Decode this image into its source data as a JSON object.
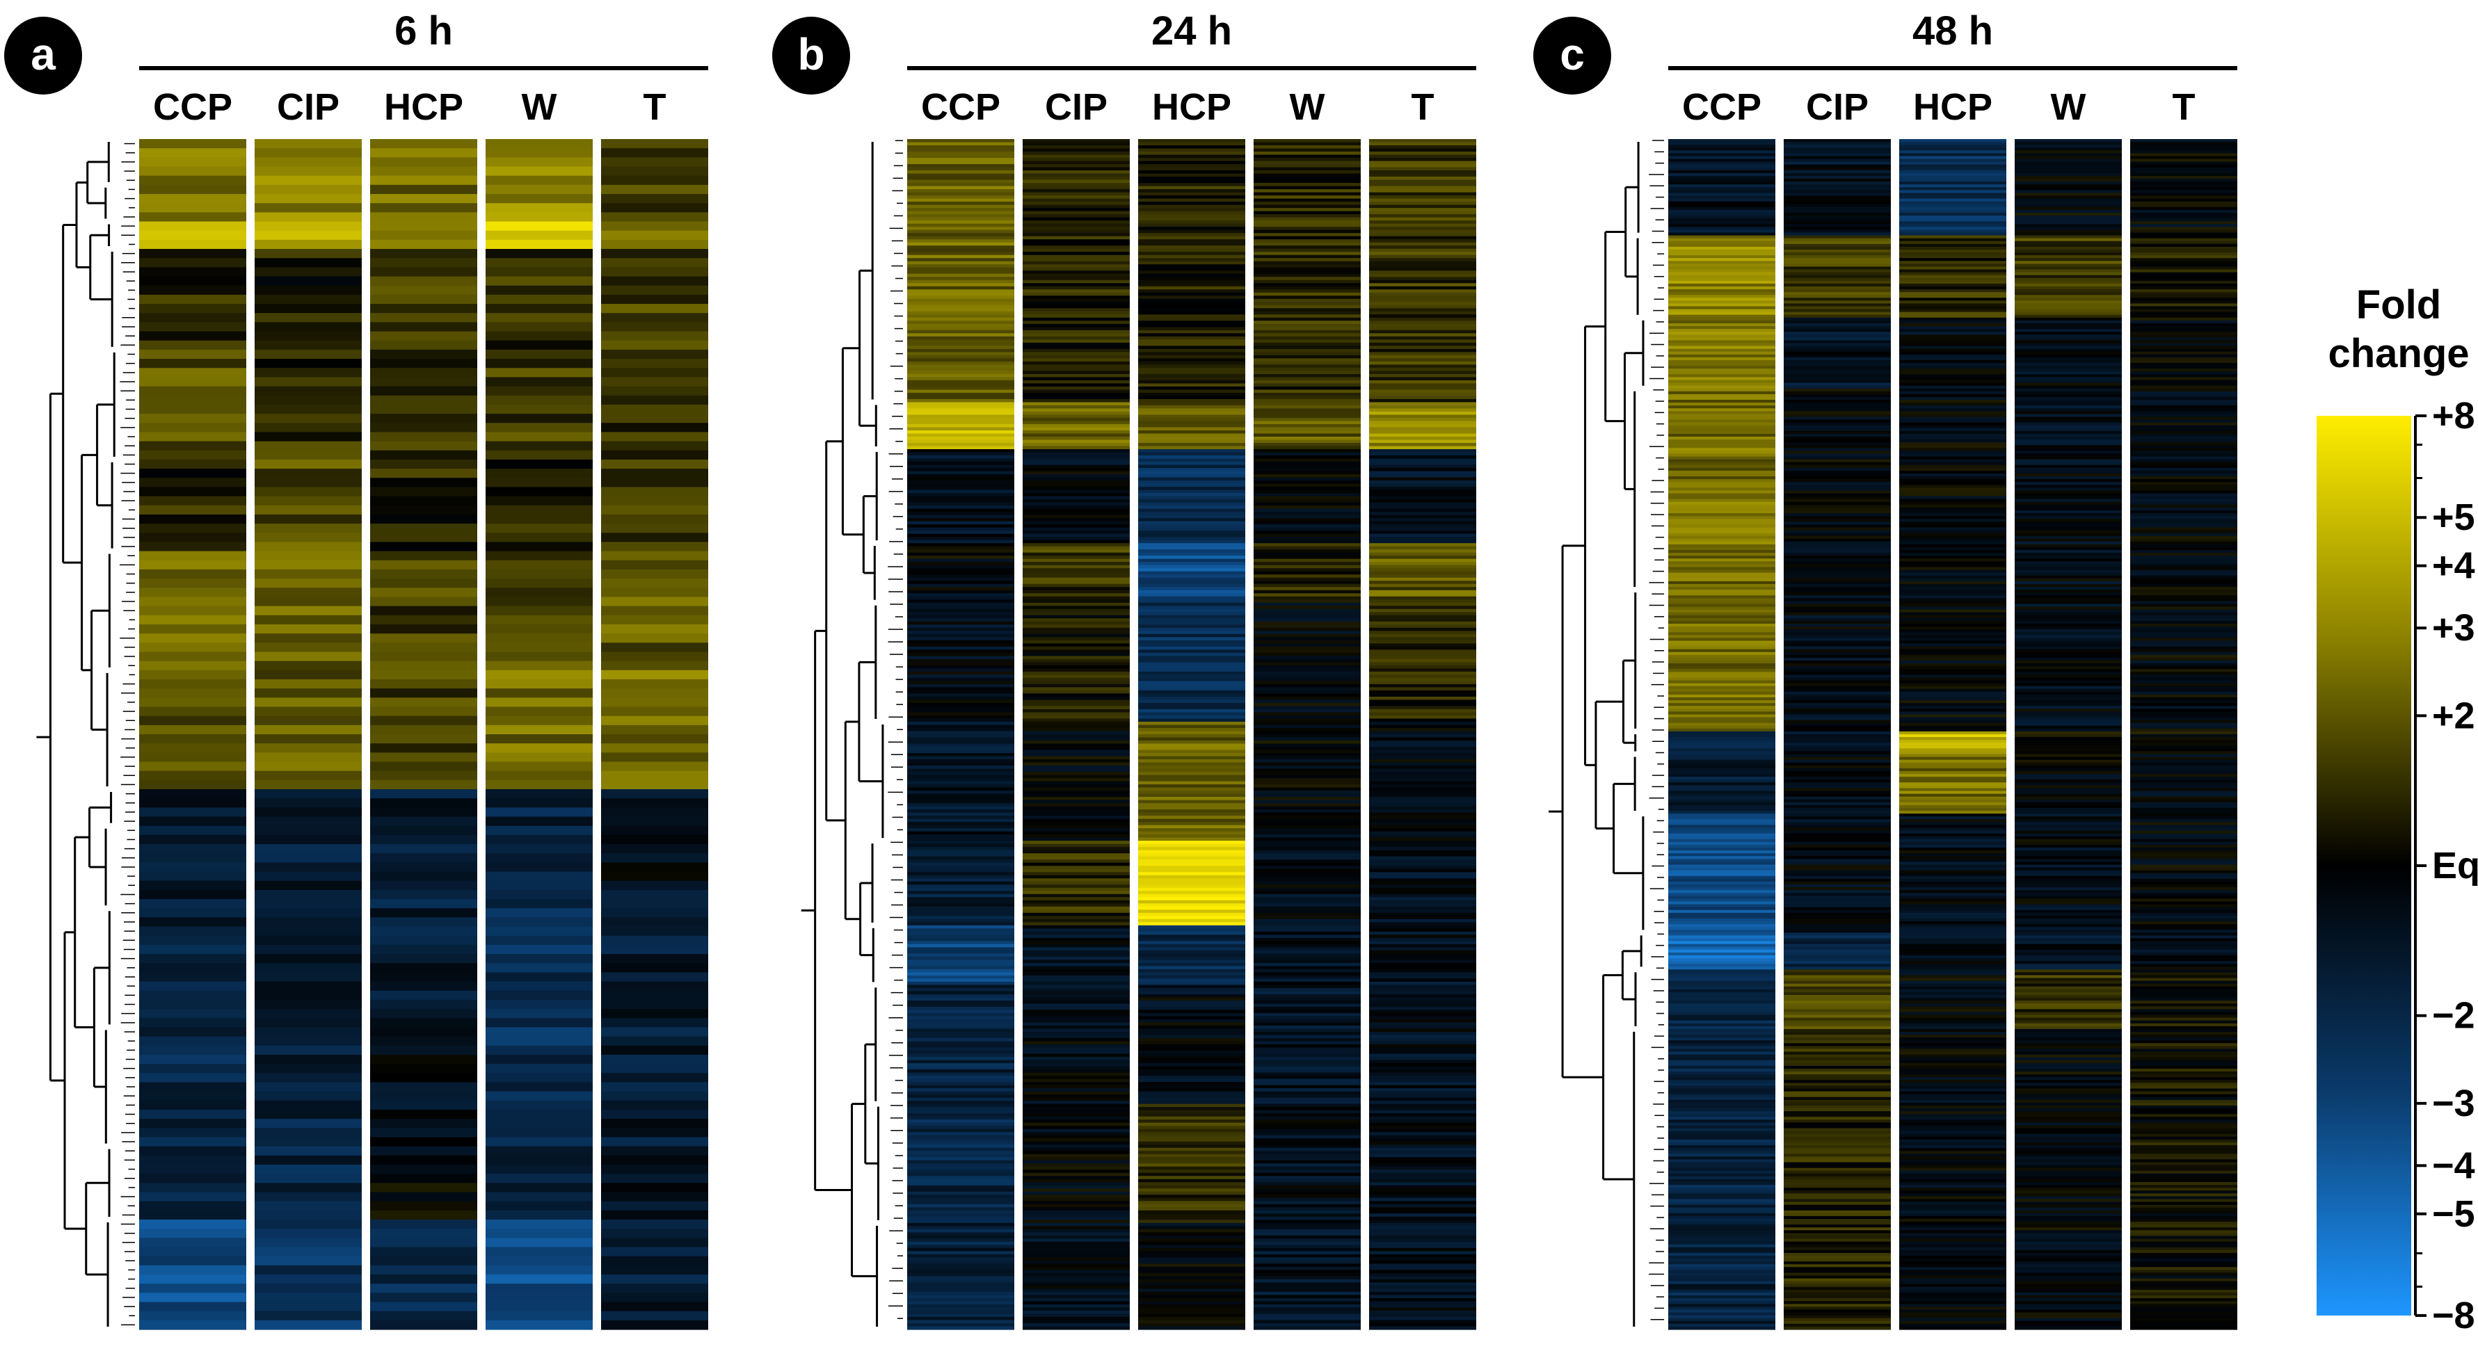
{
  "panels": [
    {
      "letter": "a",
      "title": "6 h",
      "columns": [
        "CCP",
        "CIP",
        "HCP",
        "W",
        "T"
      ],
      "rows": 130,
      "seed": 11,
      "blocks": [
        {
          "fraction": 0.035,
          "values": [
            2.6,
            3.2,
            2.6,
            3.3,
            1.6
          ]
        },
        {
          "fraction": 0.03,
          "values": [
            2.5,
            3.0,
            2.3,
            3.1,
            1.6
          ]
        },
        {
          "fraction": 0.025,
          "values": [
            6.5,
            4.8,
            2.6,
            6.8,
            2.4
          ]
        },
        {
          "fraction": 0.085,
          "values": [
            1.3,
            1.2,
            1.7,
            1.4,
            1.7
          ]
        },
        {
          "fraction": 0.09,
          "values": [
            1.9,
            1.4,
            1.5,
            1.6,
            1.5
          ]
        },
        {
          "fraction": 0.08,
          "values": [
            1.3,
            1.9,
            1.3,
            1.3,
            1.6
          ]
        },
        {
          "fraction": 0.1,
          "values": [
            2.1,
            2.1,
            1.6,
            1.9,
            2.0
          ]
        },
        {
          "fraction": 0.1,
          "values": [
            2.0,
            2.1,
            1.7,
            2.3,
            2.5
          ]
        },
        {
          "fraction": 0.03,
          "values": [
            -1.6,
            -1.5,
            -1.6,
            -1.8,
            -1.4
          ]
        },
        {
          "fraction": 0.07,
          "values": [
            -1.7,
            -1.6,
            -1.7,
            -2.0,
            -1.3
          ]
        },
        {
          "fraction": 0.1,
          "values": [
            -1.8,
            -1.4,
            -1.6,
            -2.2,
            -1.6
          ]
        },
        {
          "fraction": 0.1,
          "values": [
            -2.0,
            -1.8,
            -1.3,
            -2.2,
            -1.6
          ]
        },
        {
          "fraction": 0.06,
          "values": [
            -2.0,
            -1.9,
            -1.1,
            -2.0,
            -1.4
          ]
        },
        {
          "fraction": 0.05,
          "values": [
            -3.6,
            -2.5,
            -2.0,
            -3.4,
            -1.6
          ]
        }
      ]
    },
    {
      "letter": "b",
      "title": "24 h",
      "columns": [
        "CCP",
        "CIP",
        "HCP",
        "W",
        "T"
      ],
      "rows": 380,
      "seed": 23,
      "blocks": [
        {
          "fraction": 0.22,
          "values": [
            2.2,
            1.3,
            1.3,
            1.4,
            1.5
          ]
        },
        {
          "fraction": 0.04,
          "values": [
            4.8,
            2.3,
            2.0,
            2.0,
            3.0
          ]
        },
        {
          "fraction": 0.08,
          "values": [
            -1.3,
            -1.2,
            -2.2,
            -1.1,
            -1.3
          ]
        },
        {
          "fraction": 0.05,
          "values": [
            -1.1,
            1.5,
            -3.3,
            1.3,
            2.0
          ]
        },
        {
          "fraction": 0.1,
          "values": [
            -1.2,
            1.2,
            -2.2,
            -1.1,
            1.3
          ]
        },
        {
          "fraction": 0.1,
          "values": [
            -1.4,
            -1.1,
            2.2,
            -1.1,
            -1.2
          ]
        },
        {
          "fraction": 0.07,
          "values": [
            -1.6,
            1.4,
            7.0,
            -1.2,
            -1.3
          ]
        },
        {
          "fraction": 0.05,
          "values": [
            -3.0,
            -1.3,
            -2.0,
            -1.3,
            -1.3
          ]
        },
        {
          "fraction": 0.1,
          "values": [
            -1.8,
            -1.2,
            -1.2,
            -1.4,
            -1.3
          ]
        },
        {
          "fraction": 0.1,
          "values": [
            -1.9,
            -1.1,
            1.4,
            -1.3,
            -1.3
          ]
        },
        {
          "fraction": 0.09,
          "values": [
            -1.7,
            -1.3,
            -1.1,
            -1.4,
            -1.3
          ]
        }
      ]
    },
    {
      "letter": "c",
      "title": "48 h",
      "columns": [
        "CCP",
        "CIP",
        "HCP",
        "W",
        "T"
      ],
      "rows": 420,
      "seed": 37,
      "blocks": [
        {
          "fraction": 0.08,
          "values": [
            -1.4,
            -1.3,
            -2.2,
            -1.1,
            -1.1
          ]
        },
        {
          "fraction": 0.07,
          "values": [
            3.0,
            1.6,
            1.4,
            1.6,
            1.2
          ]
        },
        {
          "fraction": 0.06,
          "values": [
            2.6,
            -1.4,
            -1.2,
            -1.2,
            -1.1
          ]
        },
        {
          "fraction": 0.17,
          "values": [
            2.4,
            -1.1,
            -1.1,
            -1.2,
            -1.1
          ]
        },
        {
          "fraction": 0.12,
          "values": [
            2.3,
            -1.2,
            -1.1,
            -1.2,
            -1.1
          ]
        },
        {
          "fraction": 0.02,
          "values": [
            -1.8,
            -1.3,
            5.0,
            1.2,
            1.1
          ]
        },
        {
          "fraction": 0.05,
          "values": [
            -1.6,
            -1.2,
            2.4,
            -1.1,
            -1.1
          ]
        },
        {
          "fraction": 0.1,
          "values": [
            -3.4,
            -1.2,
            -1.2,
            -1.2,
            -1.1
          ]
        },
        {
          "fraction": 0.03,
          "values": [
            -4.5,
            -1.8,
            -1.2,
            -1.4,
            -1.2
          ]
        },
        {
          "fraction": 0.05,
          "values": [
            -1.9,
            1.7,
            -1.1,
            1.5,
            1.1
          ]
        },
        {
          "fraction": 0.25,
          "values": [
            -1.8,
            1.3,
            -1.1,
            -1.1,
            1.1
          ]
        }
      ]
    }
  ],
  "legend": {
    "title_line1": "Fold",
    "title_line2": "change",
    "ticks": [
      {
        "label": "+8",
        "value": 8
      },
      {
        "label": "+5",
        "value": 5
      },
      {
        "label": "+4",
        "value": 4
      },
      {
        "label": "+3",
        "value": 3
      },
      {
        "label": "+2",
        "value": 2
      },
      {
        "label": "Eq.",
        "value": 1
      },
      {
        "label": "−2",
        "value": -2
      },
      {
        "label": "−3",
        "value": -3
      },
      {
        "label": "−4",
        "value": -4
      },
      {
        "label": "−5",
        "value": -5
      },
      {
        "label": "−8",
        "value": -8
      }
    ],
    "colors": {
      "up": "#ffee00",
      "mid_up": "#8a8000",
      "neutral": "#000000",
      "mid_down": "#0a3a6a",
      "down": "#1e96ff"
    }
  },
  "chart_data": [
    {
      "type": "heatmap",
      "title": "6 h",
      "x": [
        "CCP",
        "CIP",
        "HCP",
        "W",
        "T"
      ],
      "value_scale": "log2 fold change, -8 to +8",
      "cluster_mean_fold_change": [
        [
          2.6,
          3.2,
          2.6,
          3.3,
          1.6
        ],
        [
          2.5,
          3.0,
          2.3,
          3.1,
          1.6
        ],
        [
          6.5,
          4.8,
          2.6,
          6.8,
          2.4
        ],
        [
          1.3,
          1.2,
          1.7,
          1.4,
          1.7
        ],
        [
          1.9,
          1.4,
          1.5,
          1.6,
          1.5
        ],
        [
          1.3,
          1.9,
          1.3,
          1.3,
          1.6
        ],
        [
          2.1,
          2.1,
          1.6,
          1.9,
          2.0
        ],
        [
          2.0,
          2.1,
          1.7,
          2.3,
          2.5
        ],
        [
          -1.6,
          -1.5,
          -1.6,
          -1.8,
          -1.4
        ],
        [
          -1.7,
          -1.6,
          -1.7,
          -2.0,
          -1.3
        ],
        [
          -1.8,
          -1.4,
          -1.6,
          -2.2,
          -1.6
        ],
        [
          -2.0,
          -1.8,
          -1.3,
          -2.2,
          -1.6
        ],
        [
          -2.0,
          -1.9,
          -1.1,
          -2.0,
          -1.4
        ],
        [
          -3.6,
          -2.5,
          -2.0,
          -3.4,
          -1.6
        ]
      ]
    },
    {
      "type": "heatmap",
      "title": "24 h",
      "x": [
        "CCP",
        "CIP",
        "HCP",
        "W",
        "T"
      ],
      "value_scale": "log2 fold change, -8 to +8",
      "cluster_mean_fold_change": [
        [
          2.2,
          1.3,
          1.3,
          1.4,
          1.5
        ],
        [
          4.8,
          2.3,
          2.0,
          2.0,
          3.0
        ],
        [
          -1.3,
          -1.2,
          -2.2,
          -1.1,
          -1.3
        ],
        [
          -1.1,
          1.5,
          -3.3,
          1.3,
          2.0
        ],
        [
          -1.2,
          1.2,
          -2.2,
          -1.1,
          1.3
        ],
        [
          -1.4,
          -1.1,
          2.2,
          -1.1,
          -1.2
        ],
        [
          -1.6,
          1.4,
          7.0,
          -1.2,
          -1.3
        ],
        [
          -3.0,
          -1.3,
          -2.0,
          -1.3,
          -1.3
        ],
        [
          -1.8,
          -1.2,
          -1.2,
          -1.4,
          -1.3
        ],
        [
          -1.9,
          -1.1,
          1.4,
          -1.3,
          -1.3
        ],
        [
          -1.7,
          -1.3,
          -1.1,
          -1.4,
          -1.3
        ]
      ]
    },
    {
      "type": "heatmap",
      "title": "48 h",
      "x": [
        "CCP",
        "CIP",
        "HCP",
        "W",
        "T"
      ],
      "value_scale": "log2 fold change, -8 to +8",
      "cluster_mean_fold_change": [
        [
          -1.4,
          -1.3,
          -2.2,
          -1.1,
          -1.1
        ],
        [
          3.0,
          1.6,
          1.4,
          1.6,
          1.2
        ],
        [
          2.6,
          -1.4,
          -1.2,
          -1.2,
          -1.1
        ],
        [
          2.4,
          -1.1,
          -1.1,
          -1.2,
          -1.1
        ],
        [
          2.3,
          -1.2,
          -1.1,
          -1.2,
          -1.1
        ],
        [
          -1.8,
          -1.3,
          5.0,
          1.2,
          1.1
        ],
        [
          -1.6,
          -1.2,
          2.4,
          -1.1,
          -1.1
        ],
        [
          -3.4,
          -1.2,
          -1.2,
          -1.2,
          -1.1
        ],
        [
          -4.5,
          -1.8,
          -1.2,
          -1.4,
          -1.2
        ],
        [
          -1.9,
          1.7,
          -1.1,
          1.5,
          1.1
        ],
        [
          -1.8,
          1.3,
          -1.1,
          -1.1,
          1.1
        ]
      ]
    }
  ]
}
